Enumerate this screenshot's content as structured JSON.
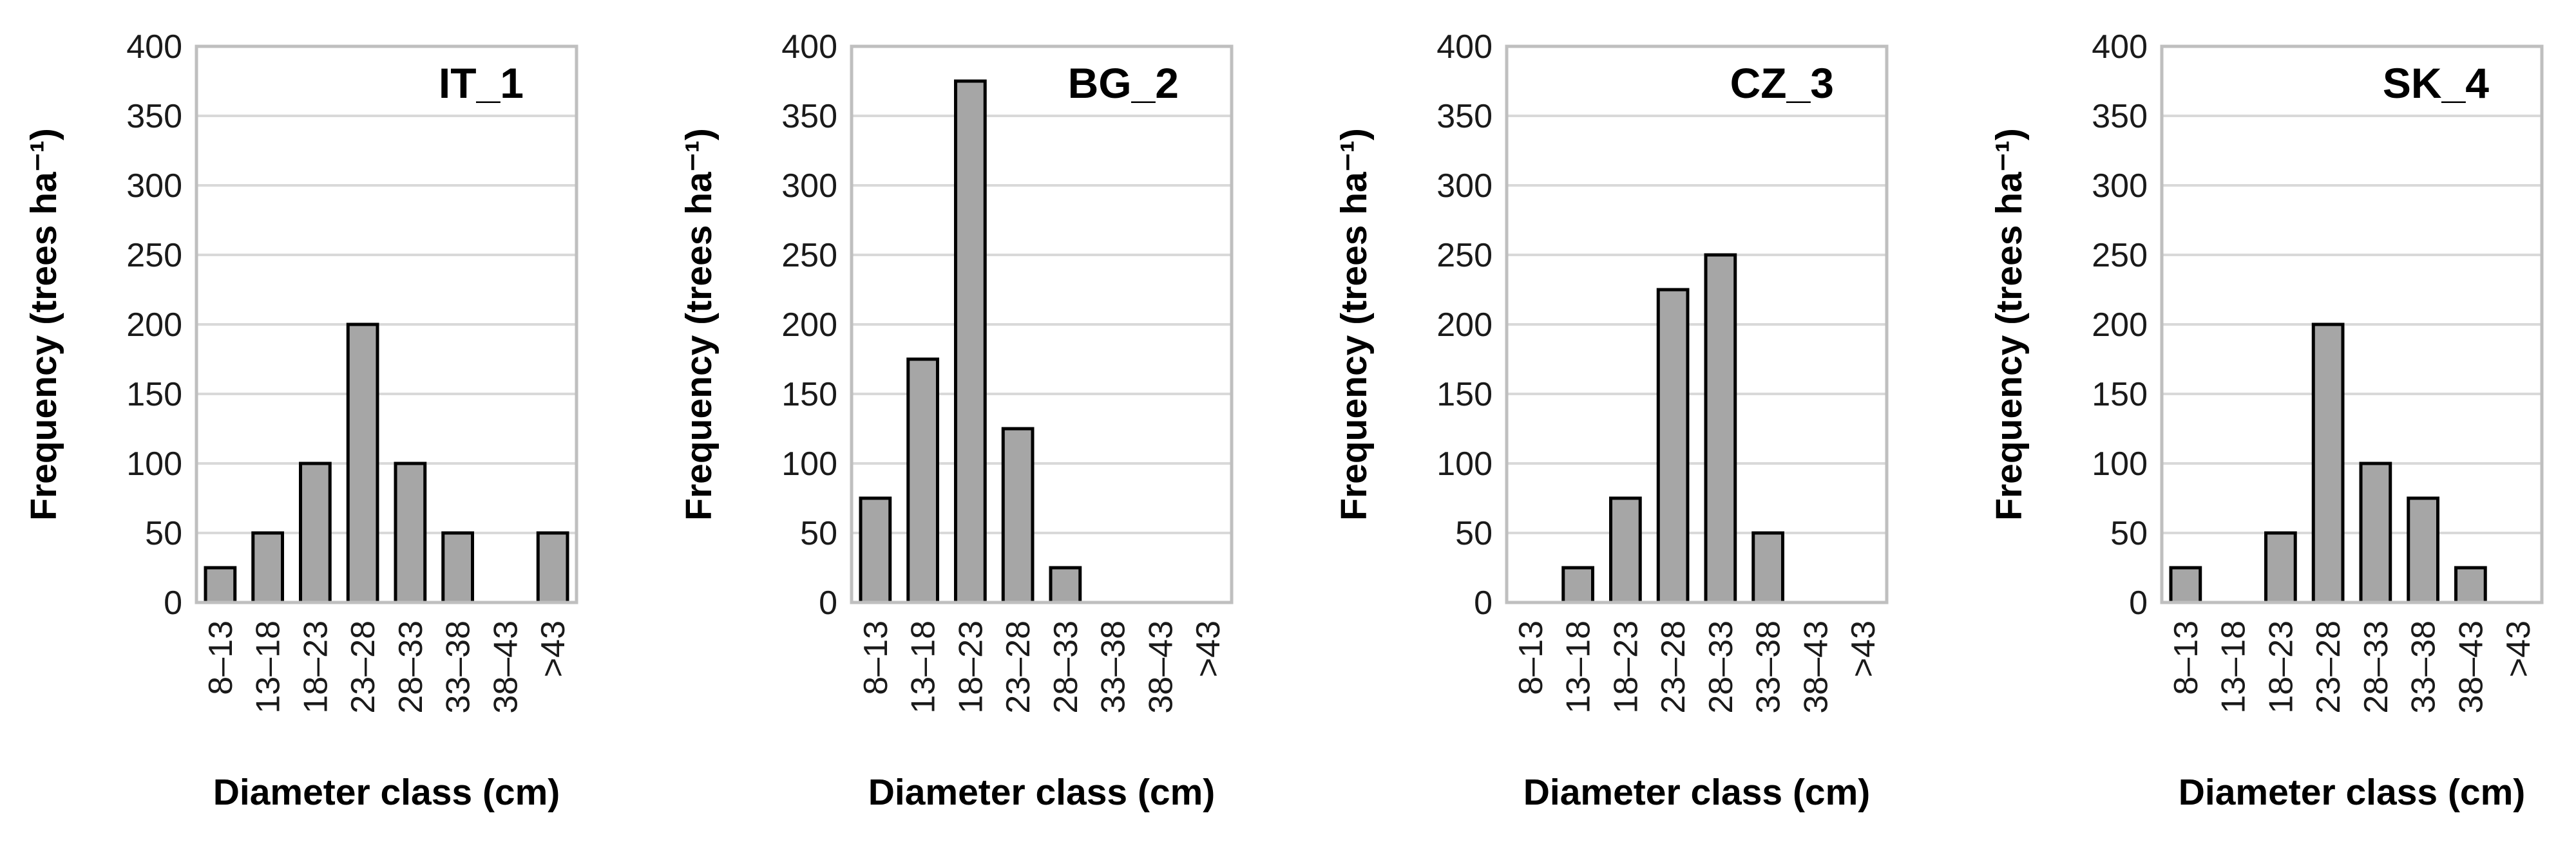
{
  "chart_data": [
    {
      "type": "bar",
      "title": "IT_1",
      "categories": [
        "8–13",
        "13–18",
        "18–23",
        "23–28",
        "28–33",
        "33–38",
        "38–43",
        ">43"
      ],
      "values": [
        25,
        50,
        100,
        200,
        100,
        50,
        0,
        50
      ],
      "xlabel": "Diameter class (cm)",
      "ylabel": "Frequency (trees ha⁻¹)",
      "ylim": [
        0,
        400
      ],
      "yticks": [
        "0",
        "50",
        "100",
        "150",
        "200",
        "250",
        "300",
        "350",
        "400"
      ],
      "grid": true,
      "bar_color": "#a6a6a6"
    },
    {
      "type": "bar",
      "title": "BG_2",
      "categories": [
        "8–13",
        "13–18",
        "18–23",
        "23–28",
        "28–33",
        "33–38",
        "38–43",
        ">43"
      ],
      "values": [
        75,
        175,
        375,
        125,
        25,
        0,
        0,
        0
      ],
      "xlabel": "Diameter class (cm)",
      "ylabel": "Frequency (trees ha⁻¹)",
      "ylim": [
        0,
        400
      ],
      "yticks": [
        "0",
        "50",
        "100",
        "150",
        "200",
        "250",
        "300",
        "350",
        "400"
      ],
      "grid": true,
      "bar_color": "#a6a6a6"
    },
    {
      "type": "bar",
      "title": "CZ_3",
      "categories": [
        "8–13",
        "13–18",
        "18–23",
        "23–28",
        "28–33",
        "33–38",
        "38–43",
        ">43"
      ],
      "values": [
        0,
        25,
        75,
        225,
        250,
        50,
        0,
        0
      ],
      "xlabel": "Diameter class (cm)",
      "ylabel": "Frequency (trees ha⁻¹)",
      "ylim": [
        0,
        400
      ],
      "yticks": [
        "0",
        "50",
        "100",
        "150",
        "200",
        "250",
        "300",
        "350",
        "400"
      ],
      "grid": true,
      "bar_color": "#a6a6a6"
    },
    {
      "type": "bar",
      "title": "SK_4",
      "categories": [
        "8–13",
        "13–18",
        "18–23",
        "23–28",
        "28–33",
        "33–38",
        "38–43",
        ">43"
      ],
      "values": [
        25,
        0,
        50,
        200,
        100,
        75,
        25,
        0
      ],
      "xlabel": "Diameter class (cm)",
      "ylabel": "Frequency (trees ha⁻¹)",
      "ylim": [
        0,
        400
      ],
      "yticks": [
        "0",
        "50",
        "100",
        "150",
        "200",
        "250",
        "300",
        "350",
        "400"
      ],
      "grid": true,
      "bar_color": "#a6a6a6"
    }
  ]
}
